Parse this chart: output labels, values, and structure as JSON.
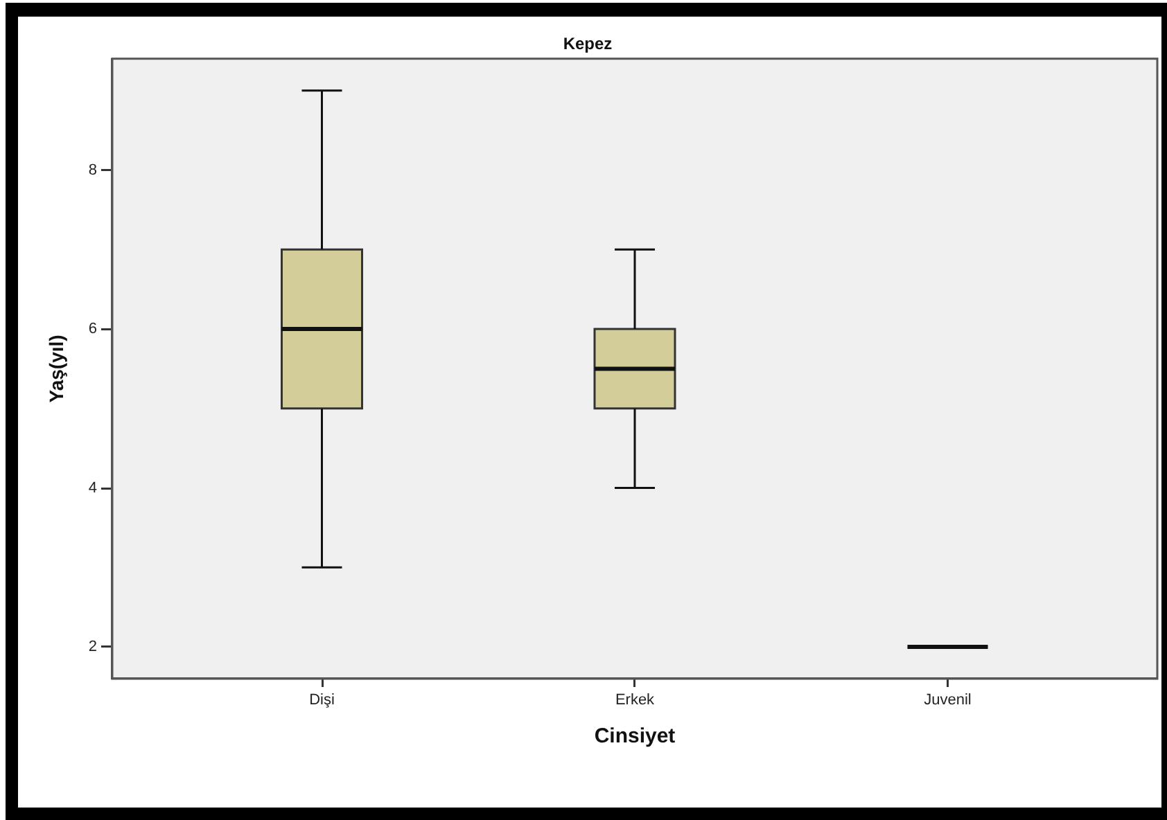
{
  "chart_data": {
    "type": "box",
    "title": "Kepez",
    "xlabel": "Cinsiyet",
    "ylabel": "Yaş(yıl)",
    "categories": [
      "Dişi",
      "Erkek",
      "Juvenil"
    ],
    "series": [
      {
        "color": "#d3ce99",
        "boxes": [
          {
            "low": 3,
            "q1": 5,
            "median": 6,
            "q3": 7,
            "high": 9
          },
          {
            "low": 4,
            "q1": 5,
            "median": 5.5,
            "q3": 6,
            "high": 7
          },
          {
            "low": 2,
            "q1": 2,
            "median": 2,
            "q3": 2,
            "high": 2
          }
        ]
      }
    ],
    "ylim": [
      1.6,
      9.4
    ],
    "yticks": [
      2,
      4,
      6,
      8
    ],
    "grid": false,
    "legend": false
  }
}
